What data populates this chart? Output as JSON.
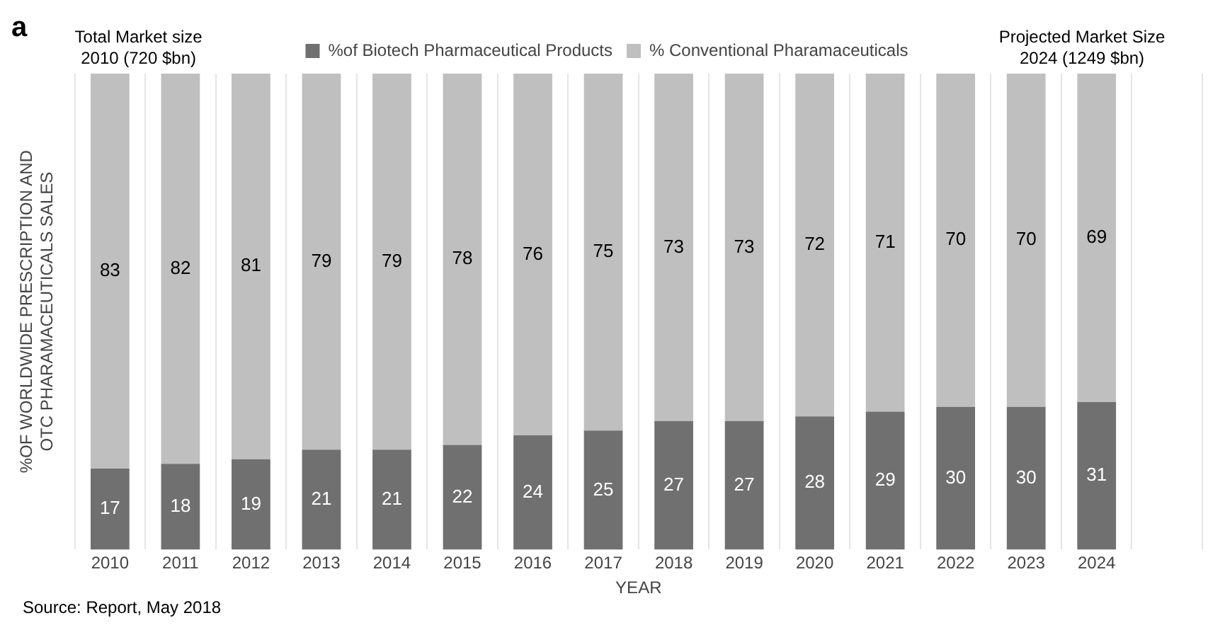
{
  "chart_data": {
    "type": "bar",
    "title": "a",
    "xlabel": "YEAR",
    "ylabel": "%OF WORLDWIDE PRESCRIPTION AND OTC PHARAMACEUTICALS SALES",
    "categories": [
      "2010",
      "2011",
      "2012",
      "2013",
      "2014",
      "2015",
      "2016",
      "2017",
      "2018",
      "2019",
      "2020",
      "2021",
      "2022",
      "2023",
      "2024",
      null
    ],
    "stacked": true,
    "data_labels": true,
    "grid": "x",
    "legend": "top",
    "series": [
      {
        "name": "%of Biotech Pharmaceutical Products",
        "color": "#707070",
        "values": [
          17,
          18,
          19,
          21,
          21,
          22,
          24,
          25,
          27,
          27,
          28,
          29,
          30,
          30,
          31,
          null
        ]
      },
      {
        "name": "% Conventional Pharamaceuticals",
        "color": "#bfbfbf",
        "values": [
          83,
          82,
          81,
          79,
          79,
          78,
          76,
          75,
          73,
          73,
          72,
          71,
          70,
          70,
          69,
          null
        ]
      }
    ],
    "annotations": [
      "Total Market size 2010 (720 $bn)",
      "Projected Market Size 2024 (1249 $bn)",
      "Source: Report, May 2018"
    ]
  }
}
